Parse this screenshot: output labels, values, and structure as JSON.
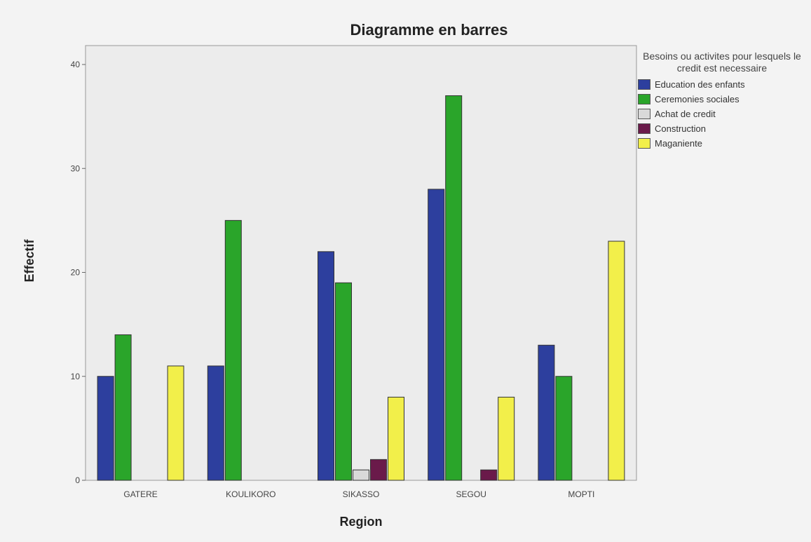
{
  "chart_data": {
    "type": "bar",
    "title": "Diagramme en barres",
    "xlabel": "Region",
    "ylabel": "Effectif",
    "categories": [
      "GATERE",
      "KOULIKORO",
      "SIKASSO",
      "SEGOU",
      "MOPTI"
    ],
    "ylim": [
      0,
      40
    ],
    "yticks": [
      "0",
      "10",
      "20",
      "30",
      "40"
    ],
    "grid": false,
    "legend_position": "right",
    "legend_title": "Besoins ou activites pour lesquels le credit est necessaire",
    "series": [
      {
        "name": "Education des enfants",
        "color": "#2d3f9e",
        "values": [
          10,
          11,
          22,
          28,
          13
        ]
      },
      {
        "name": "Ceremonies sociales",
        "color": "#2aa52a",
        "values": [
          14,
          25,
          19,
          37,
          10
        ]
      },
      {
        "name": "Achat de credit",
        "color": "#d9d9d9",
        "values": [
          0,
          0,
          1,
          0,
          0
        ]
      },
      {
        "name": "Construction",
        "color": "#6a1a4a",
        "values": [
          0,
          0,
          2,
          1,
          0
        ]
      },
      {
        "name": "Maganiente",
        "color": "#f2ef4a",
        "values": [
          11,
          0,
          8,
          8,
          23
        ]
      }
    ]
  }
}
